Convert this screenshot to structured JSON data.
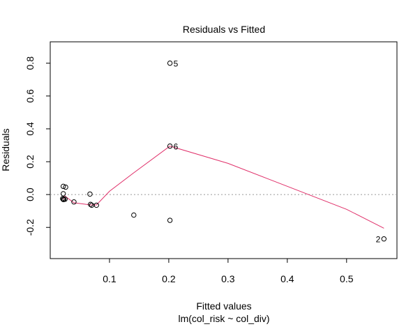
{
  "chart_data": {
    "type": "scatter",
    "title": "Residuals vs Fitted",
    "xlabel": "Fitted values",
    "xlabel_sub": "lm(col_risk ~ col_div)",
    "ylabel": "Residuals",
    "xlim": [
      0.0,
      0.585
    ],
    "ylim": [
      -0.39,
      0.93
    ],
    "x_ticks": [
      0.1,
      0.2,
      0.3,
      0.4,
      0.5
    ],
    "y_ticks": [
      -0.2,
      0.0,
      0.2,
      0.4,
      0.6,
      0.8
    ],
    "x_tick_labels": [
      "0.1",
      "0.2",
      "0.3",
      "0.4",
      "0.5"
    ],
    "y_tick_labels": [
      "-0.2",
      "0.0",
      "0.2",
      "0.4",
      "0.6",
      "0.8"
    ],
    "reference_line_y": 0,
    "grid": false,
    "points": [
      {
        "x": 0.022,
        "y": 0.05
      },
      {
        "x": 0.026,
        "y": 0.045
      },
      {
        "x": 0.022,
        "y": 0.005
      },
      {
        "x": 0.021,
        "y": -0.025
      },
      {
        "x": 0.023,
        "y": -0.03
      },
      {
        "x": 0.025,
        "y": -0.028
      },
      {
        "x": 0.022,
        "y": -0.03
      },
      {
        "x": 0.04,
        "y": -0.045
      },
      {
        "x": 0.067,
        "y": 0.003
      },
      {
        "x": 0.068,
        "y": -0.06
      },
      {
        "x": 0.07,
        "y": -0.065
      },
      {
        "x": 0.078,
        "y": -0.065
      },
      {
        "x": 0.141,
        "y": -0.125
      },
      {
        "x": 0.202,
        "y": -0.157
      },
      {
        "x": 0.202,
        "y": 0.295
      },
      {
        "x": 0.202,
        "y": 0.8
      },
      {
        "x": 0.563,
        "y": -0.27
      }
    ],
    "point_labels": [
      {
        "point": 15,
        "text": "5",
        "side": "right"
      },
      {
        "point": 14,
        "text": "6",
        "side": "right"
      },
      {
        "point": 16,
        "text": "2",
        "side": "left"
      }
    ],
    "smoother": {
      "color": "#e0306a",
      "x": [
        0.021,
        0.025,
        0.04,
        0.068,
        0.078,
        0.1,
        0.14,
        0.202,
        0.3,
        0.4,
        0.5,
        0.563
      ],
      "y": [
        -0.03,
        -0.01,
        -0.05,
        -0.063,
        -0.063,
        0.02,
        0.13,
        0.295,
        0.19,
        0.05,
        -0.09,
        -0.205
      ]
    }
  }
}
